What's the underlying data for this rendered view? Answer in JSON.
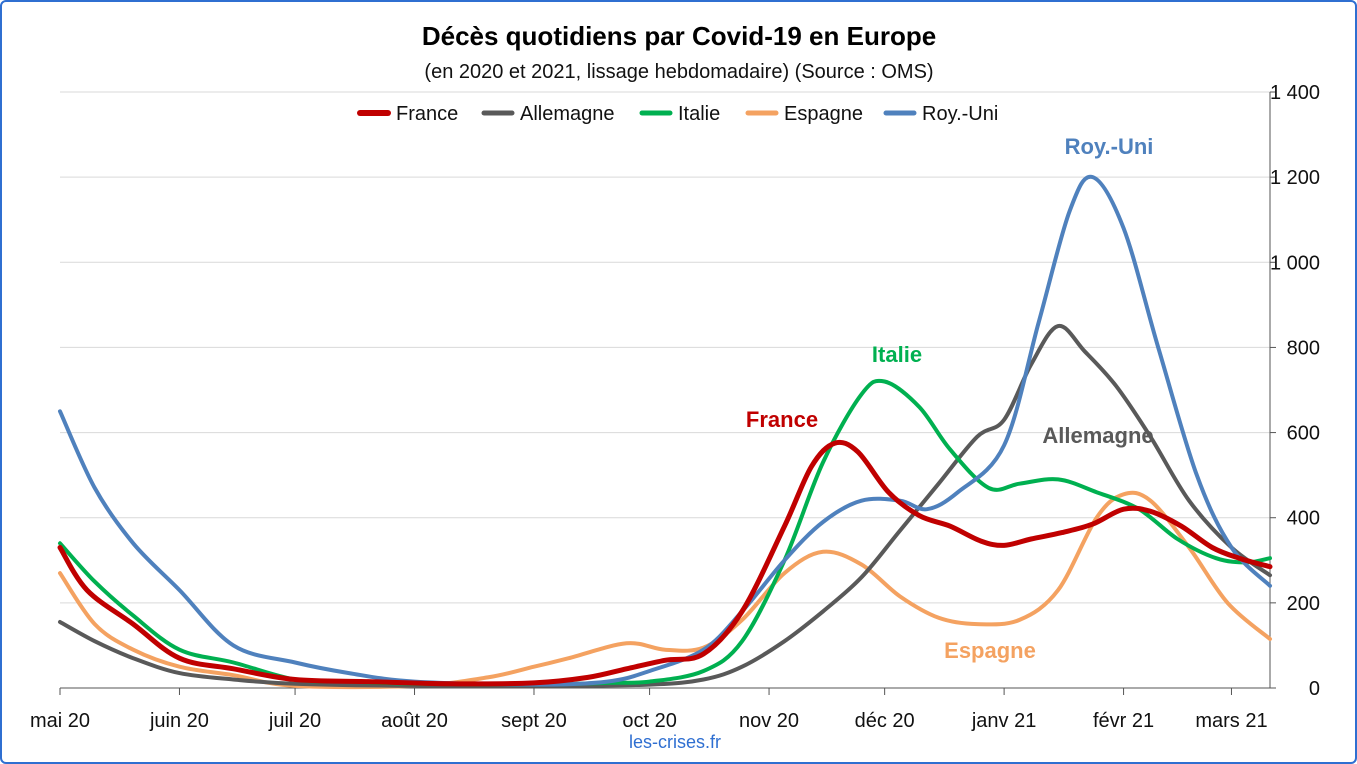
{
  "chart_data": {
    "type": "line",
    "title": "Décès quotidiens par Covid-19 en Europe",
    "subtitle": "(en 2020 et 2021, lissage hebdomadaire) (Source : OMS)",
    "source_note": "les-crises.fr",
    "ylim": [
      0,
      1400
    ],
    "y_ticks": [
      0,
      200,
      400,
      600,
      800,
      1000,
      1200,
      1400
    ],
    "y_tick_labels": [
      "0",
      "200",
      "400",
      "600",
      "800",
      "1 000",
      "1 200",
      "1 400"
    ],
    "y_axis_side": "right",
    "x_range": [
      "2020-05-01",
      "2021-03-11"
    ],
    "x_ticks": [
      "2020-05-01",
      "2020-06-01",
      "2020-07-01",
      "2020-08-01",
      "2020-09-01",
      "2020-10-01",
      "2020-11-01",
      "2020-12-01",
      "2021-01-01",
      "2021-02-01",
      "2021-03-01"
    ],
    "x_tick_labels": [
      "mai 20",
      "juin 20",
      "juil 20",
      "août 20",
      "sept 20",
      "oct 20",
      "nov 20",
      "déc 20",
      "janv 21",
      "févr 21",
      "mars 21"
    ],
    "grid": "horizontal",
    "legend_position": "top",
    "series": [
      {
        "name": "France",
        "color": "#c00000",
        "annotation": "France",
        "points": [
          [
            "2020-05-01",
            330
          ],
          [
            "2020-05-08",
            230
          ],
          [
            "2020-05-20",
            150
          ],
          [
            "2020-06-01",
            70
          ],
          [
            "2020-06-15",
            45
          ],
          [
            "2020-07-01",
            20
          ],
          [
            "2020-07-20",
            15
          ],
          [
            "2020-08-10",
            10
          ],
          [
            "2020-09-01",
            12
          ],
          [
            "2020-09-15",
            25
          ],
          [
            "2020-09-25",
            45
          ],
          [
            "2020-10-05",
            65
          ],
          [
            "2020-10-15",
            80
          ],
          [
            "2020-10-25",
            180
          ],
          [
            "2020-11-05",
            380
          ],
          [
            "2020-11-12",
            520
          ],
          [
            "2020-11-18",
            575
          ],
          [
            "2020-11-24",
            555
          ],
          [
            "2020-12-02",
            460
          ],
          [
            "2020-12-10",
            405
          ],
          [
            "2020-12-18",
            380
          ],
          [
            "2020-12-26",
            345
          ],
          [
            "2021-01-01",
            335
          ],
          [
            "2021-01-08",
            350
          ],
          [
            "2021-01-16",
            365
          ],
          [
            "2021-01-24",
            385
          ],
          [
            "2021-02-01",
            420
          ],
          [
            "2021-02-08",
            415
          ],
          [
            "2021-02-16",
            380
          ],
          [
            "2021-02-24",
            330
          ],
          [
            "2021-03-03",
            305
          ],
          [
            "2021-03-11",
            285
          ]
        ]
      },
      {
        "name": "Allemagne",
        "color": "#595959",
        "annotation": "Allemagne",
        "points": [
          [
            "2020-05-01",
            155
          ],
          [
            "2020-05-10",
            110
          ],
          [
            "2020-05-20",
            70
          ],
          [
            "2020-06-01",
            35
          ],
          [
            "2020-06-15",
            20
          ],
          [
            "2020-07-01",
            10
          ],
          [
            "2020-08-01",
            5
          ],
          [
            "2020-09-01",
            5
          ],
          [
            "2020-10-01",
            8
          ],
          [
            "2020-10-15",
            20
          ],
          [
            "2020-10-25",
            50
          ],
          [
            "2020-11-05",
            110
          ],
          [
            "2020-11-15",
            180
          ],
          [
            "2020-11-25",
            260
          ],
          [
            "2020-12-05",
            370
          ],
          [
            "2020-12-15",
            480
          ],
          [
            "2020-12-25",
            590
          ],
          [
            "2021-01-01",
            630
          ],
          [
            "2021-01-08",
            760
          ],
          [
            "2021-01-15",
            850
          ],
          [
            "2021-01-22",
            790
          ],
          [
            "2021-01-30",
            710
          ],
          [
            "2021-02-08",
            590
          ],
          [
            "2021-02-18",
            440
          ],
          [
            "2021-03-01",
            330
          ],
          [
            "2021-03-11",
            265
          ]
        ]
      },
      {
        "name": "Italie",
        "color": "#00b050",
        "annotation": "Italie",
        "points": [
          [
            "2020-05-01",
            340
          ],
          [
            "2020-05-10",
            250
          ],
          [
            "2020-05-20",
            170
          ],
          [
            "2020-06-01",
            90
          ],
          [
            "2020-06-15",
            60
          ],
          [
            "2020-07-01",
            20
          ],
          [
            "2020-07-15",
            15
          ],
          [
            "2020-08-01",
            10
          ],
          [
            "2020-09-01",
            8
          ],
          [
            "2020-09-20",
            12
          ],
          [
            "2020-10-01",
            15
          ],
          [
            "2020-10-15",
            40
          ],
          [
            "2020-10-25",
            110
          ],
          [
            "2020-11-05",
            300
          ],
          [
            "2020-11-15",
            530
          ],
          [
            "2020-11-25",
            690
          ],
          [
            "2020-12-01",
            720
          ],
          [
            "2020-12-10",
            660
          ],
          [
            "2020-12-18",
            560
          ],
          [
            "2020-12-28",
            470
          ],
          [
            "2021-01-05",
            480
          ],
          [
            "2021-01-15",
            490
          ],
          [
            "2021-01-25",
            460
          ],
          [
            "2021-02-05",
            420
          ],
          [
            "2021-02-15",
            350
          ],
          [
            "2021-02-25",
            305
          ],
          [
            "2021-03-05",
            295
          ],
          [
            "2021-03-11",
            305
          ]
        ]
      },
      {
        "name": "Espagne",
        "color": "#f4a261",
        "annotation": "Espagne",
        "points": [
          [
            "2020-05-01",
            270
          ],
          [
            "2020-05-10",
            150
          ],
          [
            "2020-05-20",
            90
          ],
          [
            "2020-06-01",
            50
          ],
          [
            "2020-06-15",
            30
          ],
          [
            "2020-07-01",
            5
          ],
          [
            "2020-08-01",
            5
          ],
          [
            "2020-08-20",
            25
          ],
          [
            "2020-09-01",
            50
          ],
          [
            "2020-09-10",
            70
          ],
          [
            "2020-09-25",
            105
          ],
          [
            "2020-10-05",
            90
          ],
          [
            "2020-10-15",
            95
          ],
          [
            "2020-10-25",
            160
          ],
          [
            "2020-11-05",
            270
          ],
          [
            "2020-11-15",
            320
          ],
          [
            "2020-11-25",
            290
          ],
          [
            "2020-12-05",
            215
          ],
          [
            "2020-12-15",
            165
          ],
          [
            "2020-12-25",
            150
          ],
          [
            "2021-01-05",
            160
          ],
          [
            "2021-01-15",
            230
          ],
          [
            "2021-01-25",
            400
          ],
          [
            "2021-02-01",
            455
          ],
          [
            "2021-02-08",
            440
          ],
          [
            "2021-02-18",
            330
          ],
          [
            "2021-02-28",
            200
          ],
          [
            "2021-03-11",
            115
          ]
        ]
      },
      {
        "name": "Roy.-Uni",
        "color": "#4f81bd",
        "annotation": "Roy.-Uni",
        "points": [
          [
            "2020-05-01",
            650
          ],
          [
            "2020-05-10",
            470
          ],
          [
            "2020-05-20",
            340
          ],
          [
            "2020-06-01",
            230
          ],
          [
            "2020-06-15",
            100
          ],
          [
            "2020-07-01",
            60
          ],
          [
            "2020-07-15",
            35
          ],
          [
            "2020-08-01",
            15
          ],
          [
            "2020-09-01",
            8
          ],
          [
            "2020-09-20",
            15
          ],
          [
            "2020-10-01",
            40
          ],
          [
            "2020-10-15",
            90
          ],
          [
            "2020-10-25",
            180
          ],
          [
            "2020-11-05",
            300
          ],
          [
            "2020-11-15",
            390
          ],
          [
            "2020-11-25",
            440
          ],
          [
            "2020-12-05",
            440
          ],
          [
            "2020-12-12",
            420
          ],
          [
            "2020-12-20",
            460
          ],
          [
            "2021-01-01",
            570
          ],
          [
            "2021-01-10",
            860
          ],
          [
            "2021-01-18",
            1120
          ],
          [
            "2021-01-24",
            1200
          ],
          [
            "2021-02-01",
            1080
          ],
          [
            "2021-02-10",
            800
          ],
          [
            "2021-02-20",
            500
          ],
          [
            "2021-03-01",
            330
          ],
          [
            "2021-03-11",
            240
          ]
        ]
      }
    ]
  }
}
